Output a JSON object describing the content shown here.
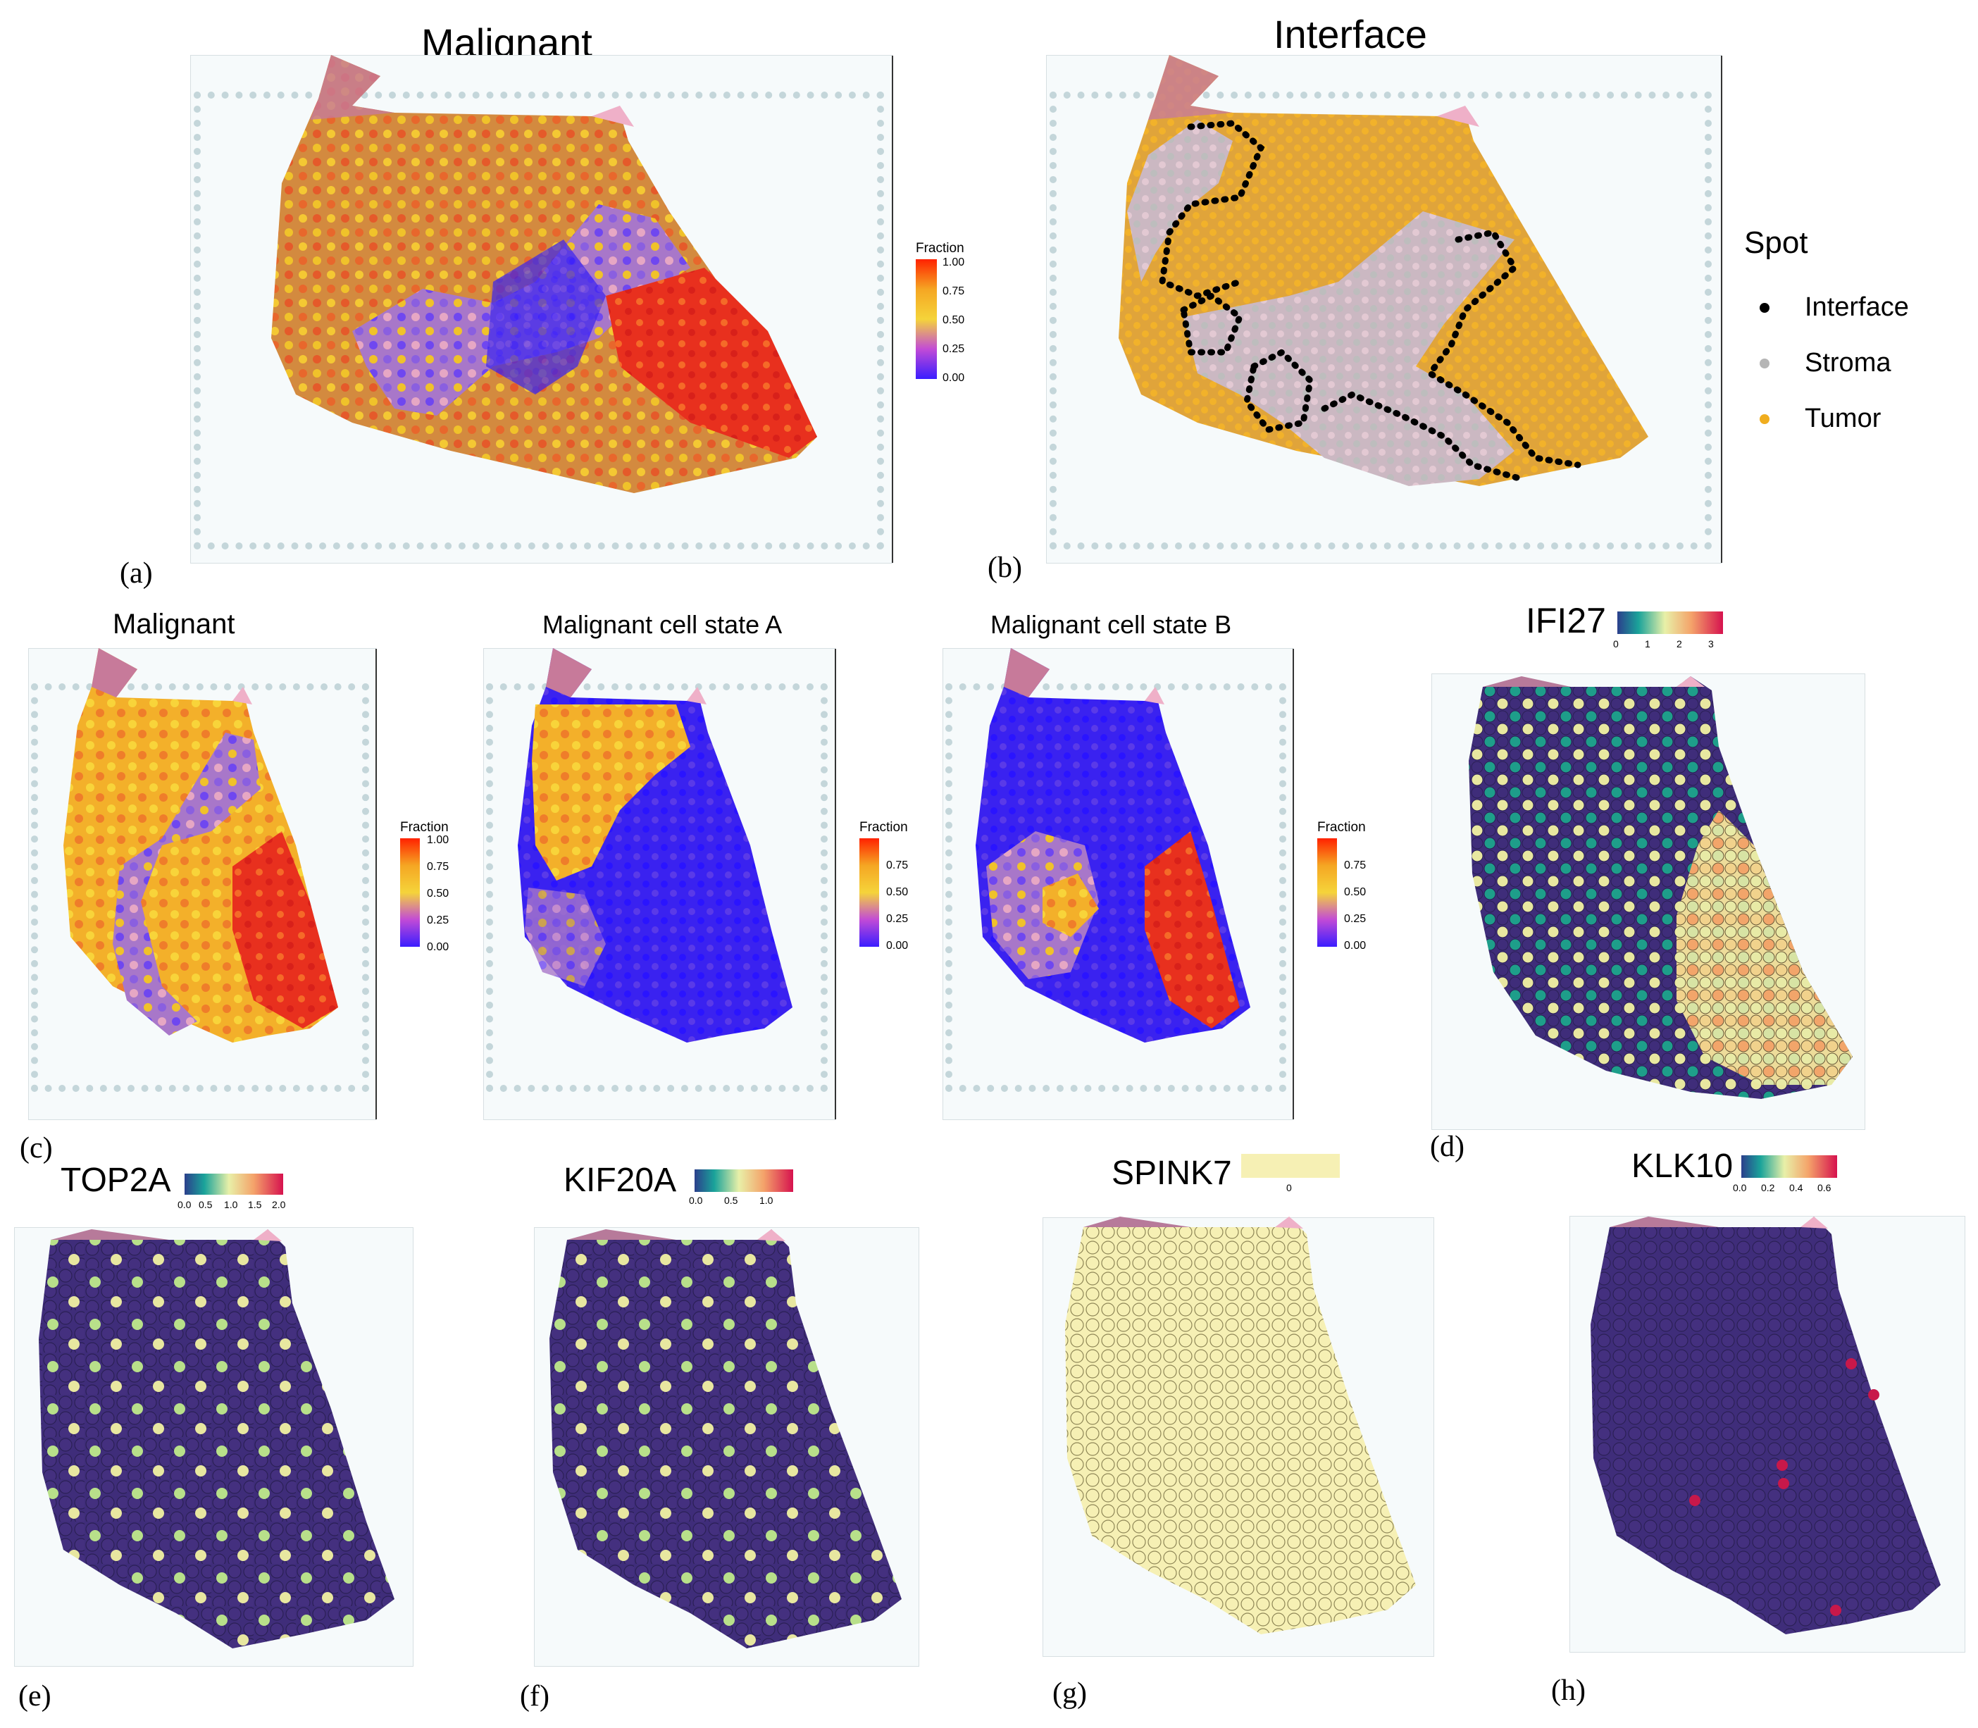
{
  "colors": {
    "frac_low": "#3a1dff",
    "frac_mid": "#f5a623",
    "frac_high": "#ff2200",
    "viridis_low": "#3f2d7a",
    "interface": "#000000",
    "stroma": "#b5b5b5",
    "tumor": "#f0ad1e",
    "spink_fill": "#f6f0b4"
  },
  "panels": {
    "a": {
      "title": "Malignant",
      "label": "(a)",
      "legend_title": "Fraction",
      "ticks": [
        "1.00",
        "0.75",
        "0.50",
        "0.25",
        "0.00"
      ]
    },
    "b": {
      "title": "Interface",
      "label": "(b)",
      "legend": {
        "title": "Spot",
        "items": [
          "Interface",
          "Stroma",
          "Tumor"
        ]
      }
    },
    "c1": {
      "title": "Malignant",
      "label": "(c)",
      "legend_title": "Fraction",
      "ticks": [
        "1.00",
        "0.75",
        "0.50",
        "0.25",
        "0.00"
      ]
    },
    "c2": {
      "title": "Malignant cell state A",
      "legend_title": "Fraction",
      "ticks": [
        "0.75",
        "0.50",
        "0.25",
        "0.00"
      ]
    },
    "c3": {
      "title": "Malignant cell state B",
      "legend_title": "Fraction",
      "ticks": [
        "0.75",
        "0.50",
        "0.25",
        "0.00"
      ]
    },
    "d": {
      "title": "IFI27",
      "label": "(d)",
      "ticks": [
        "0",
        "1",
        "2",
        "3"
      ]
    },
    "e": {
      "title": "TOP2A",
      "label": "(e)",
      "ticks": [
        "0.0",
        "0.5",
        "1.0",
        "1.5",
        "2.0"
      ]
    },
    "f": {
      "title": "KIF20A",
      "label": "(f)",
      "ticks": [
        "0.0",
        "0.5",
        "1.0"
      ]
    },
    "g": {
      "title": "SPINK7",
      "label": "(g)",
      "ticks": [
        "0"
      ]
    },
    "h": {
      "title": "KLK10",
      "label": "(h)",
      "ticks": [
        "0.0",
        "0.2",
        "0.4",
        "0.6"
      ]
    }
  }
}
